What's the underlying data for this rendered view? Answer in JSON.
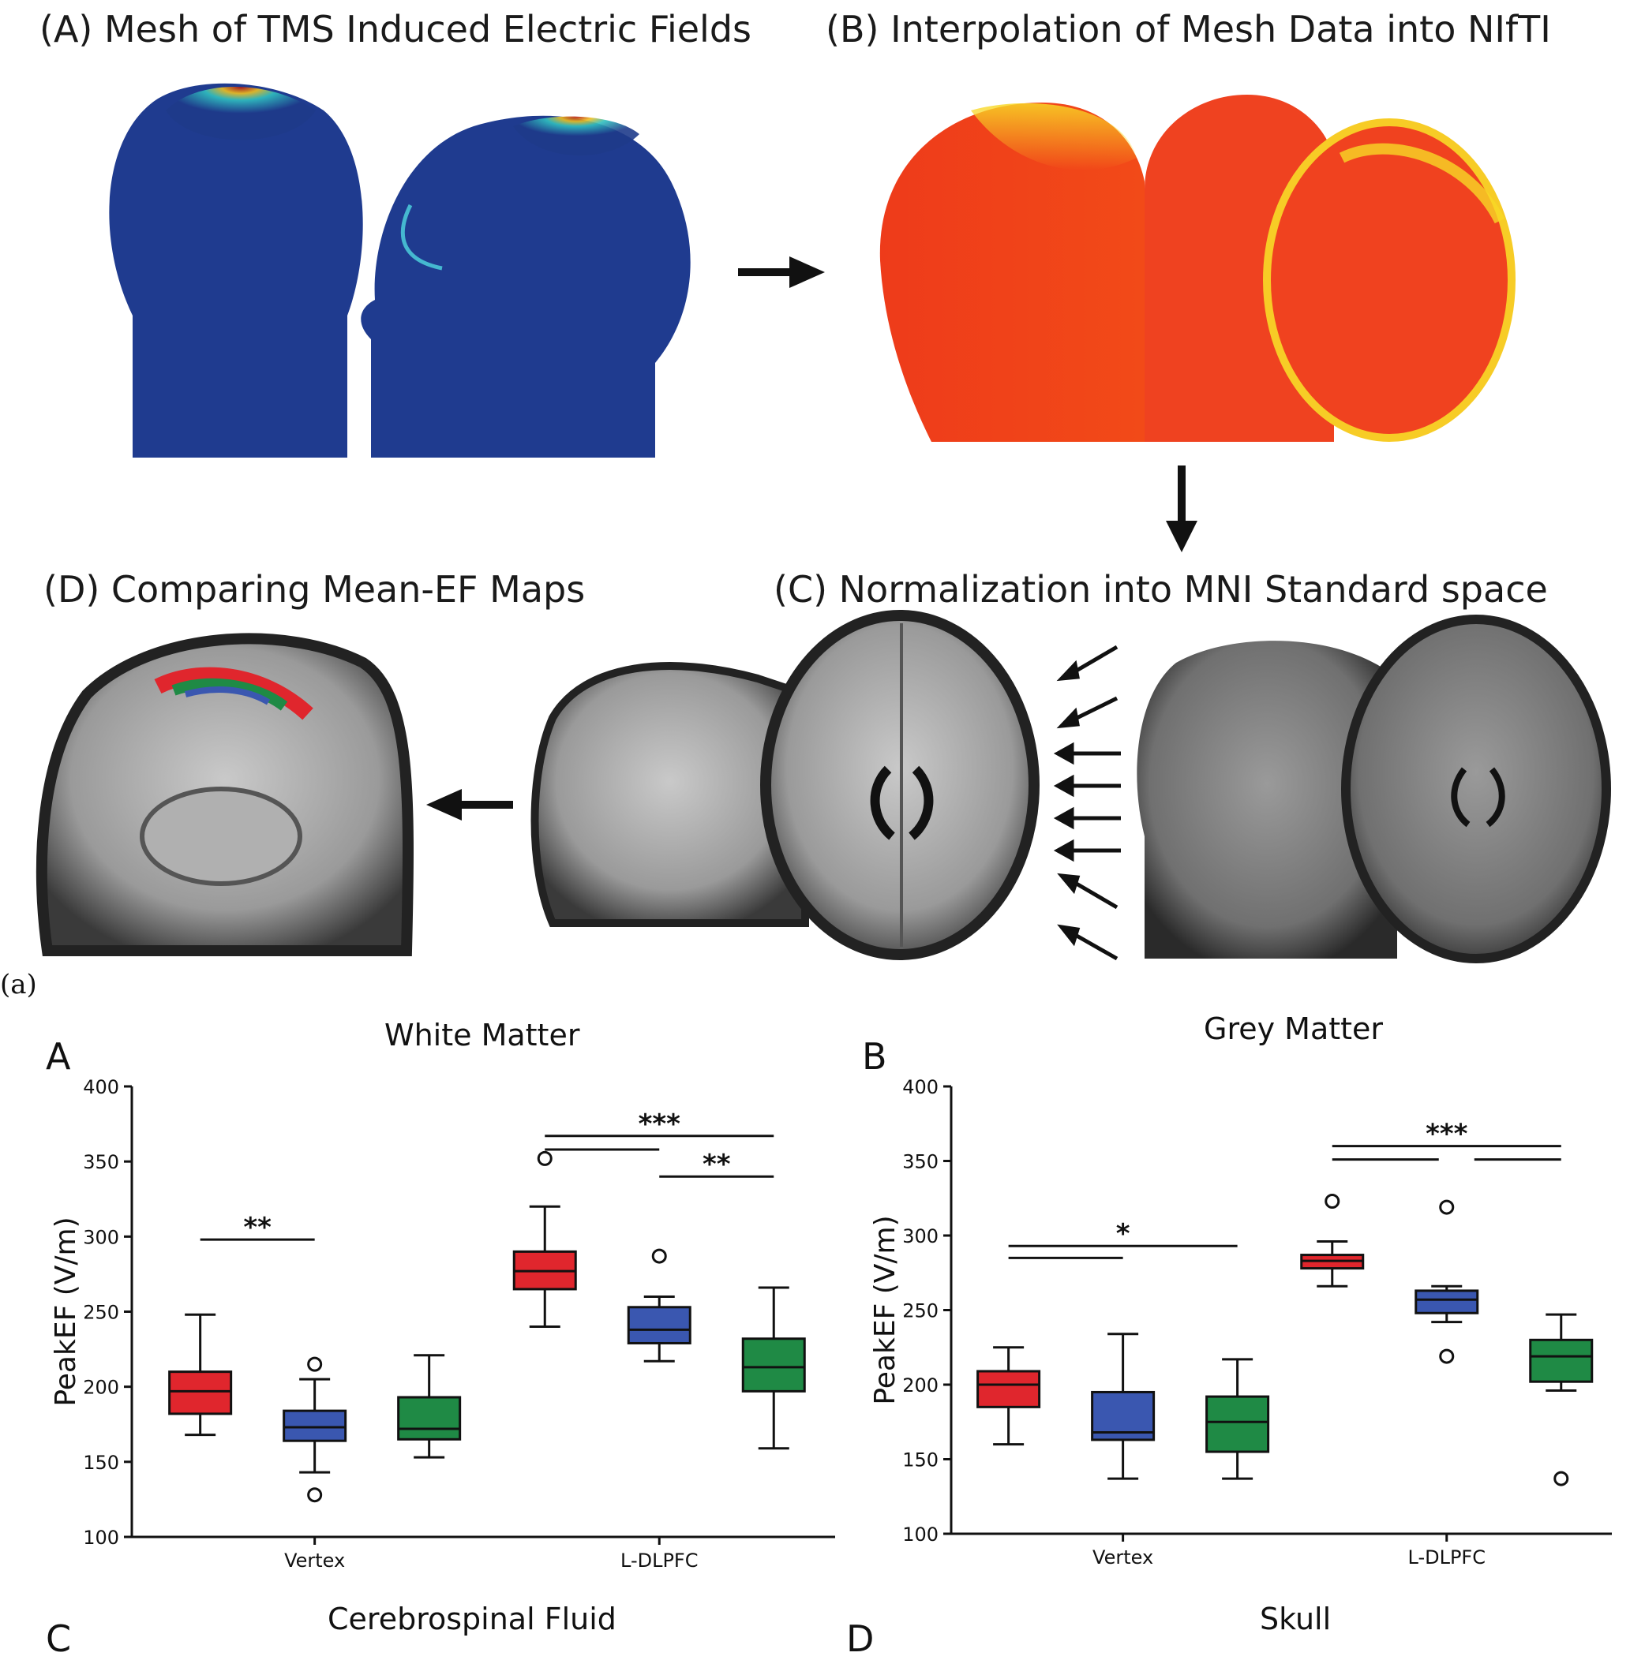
{
  "figure_top": {
    "panel_a_title": "(A)   Mesh of TMS Induced Electric Fields",
    "panel_b_title": "(B)   Interpolation of Mesh Data into NIfTI",
    "panel_c_title": "(C)   Normalization into MNI Standard space",
    "panel_d_title": "(D)   Comparing Mean-EF Maps",
    "subfigure_label": "(a)"
  },
  "colors": {
    "red": "#e0262d",
    "blue": "#3a57b0",
    "green": "#1f8a45",
    "axis": "#111111"
  },
  "chart_data": [
    {
      "type": "box",
      "panel_letter": "A",
      "title": "White Matter",
      "ylabel": "PeakEF (V/m)",
      "ylim": [
        100,
        400
      ],
      "yticks": [
        100,
        150,
        200,
        250,
        300,
        350,
        400
      ],
      "categories": [
        "Vertex",
        "L-DLPFC"
      ],
      "groups": [
        [
          {
            "color": "red",
            "min": 168,
            "q1": 182,
            "median": 197,
            "q3": 210,
            "max": 248,
            "outliers": []
          },
          {
            "color": "blue",
            "min": 143,
            "q1": 164,
            "median": 173,
            "q3": 184,
            "max": 205,
            "outliers": [
              215,
              128
            ]
          },
          {
            "color": "green",
            "min": 153,
            "q1": 165,
            "median": 172,
            "q3": 193,
            "max": 221,
            "outliers": []
          }
        ],
        [
          {
            "color": "red",
            "min": 240,
            "q1": 265,
            "median": 277,
            "q3": 290,
            "max": 320,
            "outliers": [
              352
            ]
          },
          {
            "color": "blue",
            "min": 217,
            "q1": 229,
            "median": 238,
            "q3": 253,
            "max": 260,
            "outliers": [
              287
            ]
          },
          {
            "color": "green",
            "min": 159,
            "q1": 197,
            "median": 213,
            "q3": 232,
            "max": 266,
            "outliers": []
          }
        ]
      ],
      "significance": [
        {
          "label": "**",
          "group": 0,
          "from": 0,
          "to": 1,
          "y": 298,
          "lines": 1
        },
        {
          "label": "***",
          "group": 1,
          "from": 0,
          "to": 2,
          "y": 367,
          "lines": 2,
          "y2": 358,
          "x2to": 1
        },
        {
          "label": "**",
          "group": 1,
          "from": 1,
          "to": 2,
          "y": 340,
          "lines": 1
        }
      ]
    },
    {
      "type": "box",
      "panel_letter": "B",
      "title": "Grey Matter",
      "ylabel": "PeakEF (V/m)",
      "ylim": [
        100,
        400
      ],
      "yticks": [
        100,
        150,
        200,
        250,
        300,
        350,
        400
      ],
      "categories": [
        "Vertex",
        "L-DLPFC"
      ],
      "groups": [
        [
          {
            "color": "red",
            "min": 160,
            "q1": 185,
            "median": 200,
            "q3": 209,
            "max": 225,
            "outliers": []
          },
          {
            "color": "blue",
            "min": 137,
            "q1": 163,
            "median": 168,
            "q3": 195,
            "max": 234,
            "outliers": []
          },
          {
            "color": "green",
            "min": 137,
            "q1": 155,
            "median": 175,
            "q3": 192,
            "max": 217,
            "outliers": []
          }
        ],
        [
          {
            "color": "red",
            "min": 266,
            "q1": 278,
            "median": 283,
            "q3": 287,
            "max": 296,
            "outliers": [
              323
            ]
          },
          {
            "color": "blue",
            "min": 242,
            "q1": 248,
            "median": 257,
            "q3": 263,
            "max": 266,
            "outliers": [
              319,
              219
            ]
          },
          {
            "color": "green",
            "min": 196,
            "q1": 202,
            "median": 219,
            "q3": 230,
            "max": 247,
            "outliers": [
              137
            ]
          }
        ]
      ],
      "significance": [
        {
          "label": "*",
          "group": 0,
          "from": 0,
          "to": 2,
          "y": 293,
          "lines": 2,
          "y2": 285,
          "x2to": 1
        },
        {
          "label": "***",
          "group": 1,
          "from": 0,
          "to": 2,
          "y": 360,
          "lines": 2,
          "y2": 351,
          "x2to": 1,
          "split": true
        }
      ]
    }
  ],
  "bottom_titles": {
    "c_letter": "C",
    "c_title": "Cerebrospinal Fluid",
    "d_letter": "D",
    "d_title": "Skull"
  }
}
